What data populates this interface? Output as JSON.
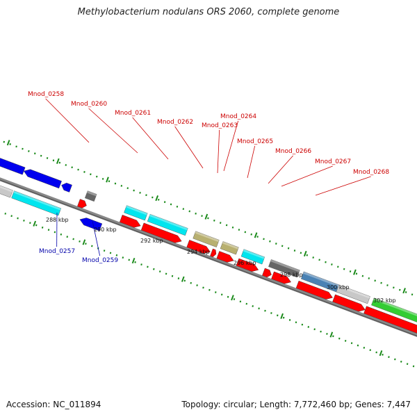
{
  "title": "Methylobacterium nodulans ORS 2060, complete genome",
  "footer": {
    "accession": "Accession: NC_011894",
    "topology": "Topology: circular; Length: 7,772,460 bp; Genes: 7,447"
  },
  "colors": {
    "forward_label": "#cc0000",
    "reverse_label": "#0000aa",
    "backbone": "#888888",
    "tick": "#1a8a1a",
    "cds_forward": "#ff0000",
    "cds_reverse": "#0000ee",
    "cyan": "#00e5ee",
    "grey_dark": "#666666",
    "grey_light": "#c8c8c8",
    "khaki": "#b8b070",
    "steel": "#4a82b4",
    "green": "#33cc33"
  },
  "icons": [
    "forward-gene-arrow-icon",
    "reverse-gene-arrow-icon"
  ],
  "scale": {
    "unit": "kbp",
    "labels": [
      "288 kbp",
      "290 kbp",
      "292 kbp",
      "294 kbp",
      "296 kbp",
      "298 kbp",
      "300 kbp",
      "302 kbp"
    ]
  },
  "loci": {
    "forward": [
      "Mnod_0258",
      "Mnod_0260",
      "Mnod_0261",
      "Mnod_0262",
      "Mnod_0263",
      "Mnod_0264",
      "Mnod_0265",
      "Mnod_0266",
      "Mnod_0267",
      "Mnod_0268"
    ],
    "reverse": [
      "Mnod_0257",
      "Mnod_0259"
    ]
  }
}
